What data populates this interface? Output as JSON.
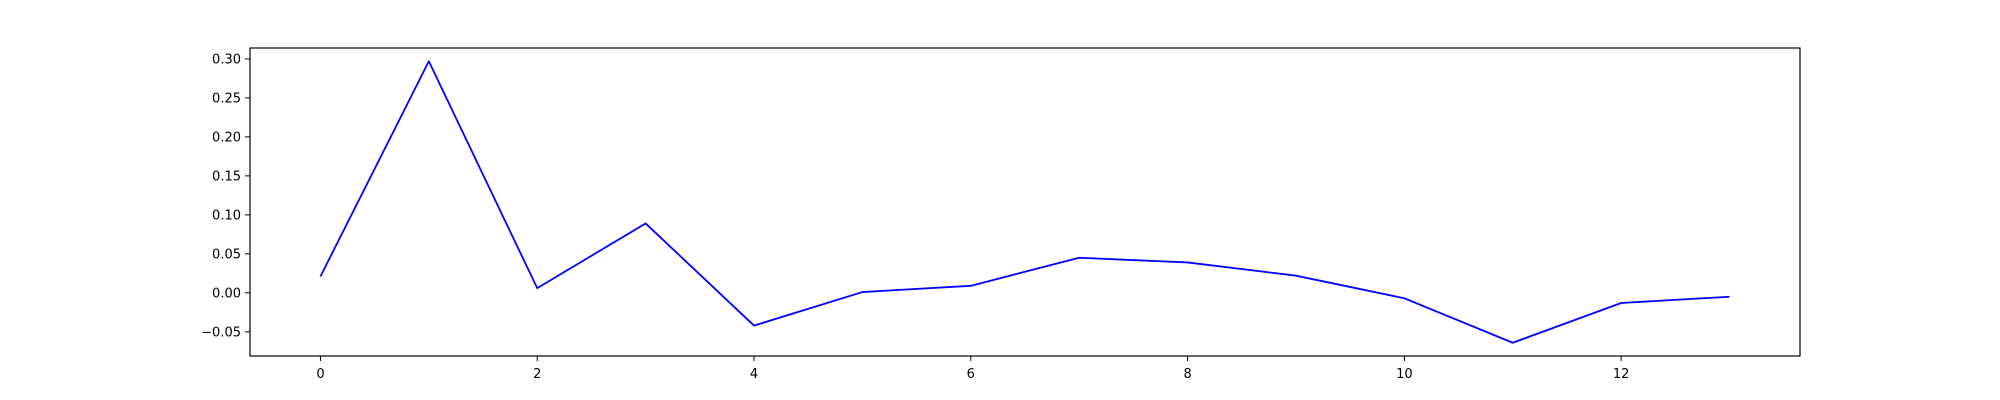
{
  "chart_data": {
    "type": "line",
    "title": "",
    "xlabel": "",
    "ylabel": "",
    "xlim": [
      -0.65,
      13.65
    ],
    "ylim": [
      -0.081,
      0.314
    ],
    "grid": false,
    "legend": "none",
    "x_ticks": [
      0,
      2,
      4,
      6,
      8,
      10,
      12
    ],
    "x_tick_labels": [
      "0",
      "2",
      "4",
      "6",
      "8",
      "10",
      "12"
    ],
    "y_ticks": [
      -0.05,
      0.0,
      0.05,
      0.1,
      0.15,
      0.2,
      0.25,
      0.3
    ],
    "y_tick_labels": [
      "−0.05",
      "0.00",
      "0.05",
      "0.10",
      "0.15",
      "0.20",
      "0.25",
      "0.30"
    ],
    "series": [
      {
        "color": "#0000ff",
        "x": [
          0,
          1,
          2,
          3,
          4,
          5,
          6,
          7,
          8,
          9,
          10,
          11,
          12,
          13
        ],
        "y": [
          0.021,
          0.297,
          0.006,
          0.089,
          -0.042,
          0.001,
          0.009,
          0.045,
          0.039,
          0.022,
          -0.007,
          -0.064,
          -0.013,
          -0.005
        ]
      }
    ]
  }
}
